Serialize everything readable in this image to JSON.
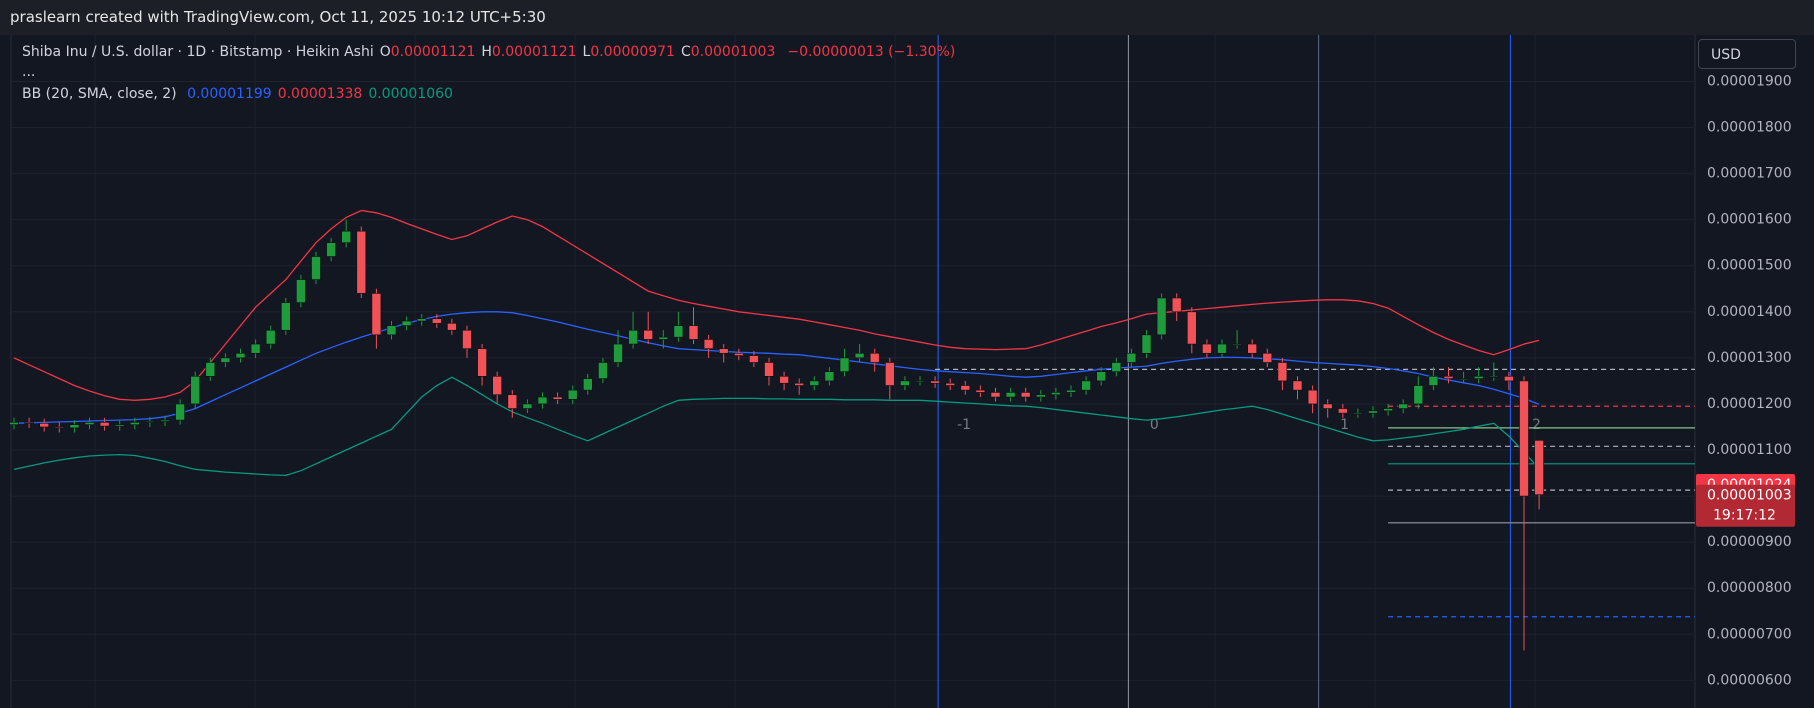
{
  "watermark": "praslearn created with TradingView.com, Oct 11, 2025 10:12 UTC+5:30",
  "chart_data": {
    "type": "candlestick",
    "title": "Shiba Inu / U.S. dollar · 1D · Bitstamp · Heikin Ashi",
    "ohlc": [
      {
        "key": "O",
        "label": "0.00001121"
      },
      {
        "key": "H",
        "label": "0.00001121"
      },
      {
        "key": "L",
        "label": "0.00000971"
      },
      {
        "key": "C",
        "label": "0.00001003"
      }
    ],
    "change": "−0.00000013 (−1.30%)",
    "more": "...",
    "currency": "USD",
    "up_color": "#1e9c3c",
    "down_color": "#f05258",
    "open": [
      1.155e-05,
      1.16e-05,
      1.158e-05,
      1.15e-05,
      1.148e-05,
      1.155e-05,
      1.16e-05,
      1.152e-05,
      1.155e-05,
      1.16e-05,
      1.162e-05,
      1.165e-05,
      1.2e-05,
      1.26e-05,
      1.29e-05,
      1.3e-05,
      1.31e-05,
      1.33e-05,
      1.36e-05,
      1.42e-05,
      1.47e-05,
      1.52e-05,
      1.55e-05,
      1.575e-05,
      1.44e-05,
      1.35e-05,
      1.37e-05,
      1.38e-05,
      1.385e-05,
      1.375e-05,
      1.36e-05,
      1.32e-05,
      1.26e-05,
      1.22e-05,
      1.19e-05,
      1.2e-05,
      1.215e-05,
      1.21e-05,
      1.23e-05,
      1.255e-05,
      1.29e-05,
      1.33e-05,
      1.36e-05,
      1.34e-05,
      1.345e-05,
      1.37e-05,
      1.34e-05,
      1.32e-05,
      1.31e-05,
      1.305e-05,
      1.29e-05,
      1.26e-05,
      1.245e-05,
      1.24e-05,
      1.25e-05,
      1.27e-05,
      1.3e-05,
      1.31e-05,
      1.29e-05,
      1.24e-05,
      1.25e-05,
      1.25e-05,
      1.245e-05,
      1.24e-05,
      1.23e-05,
      1.225e-05,
      1.215e-05,
      1.225e-05,
      1.215e-05,
      1.22e-05,
      1.225e-05,
      1.23e-05,
      1.25e-05,
      1.27e-05,
      1.29e-05,
      1.31e-05,
      1.35e-05,
      1.43e-05,
      1.4e-05,
      1.33e-05,
      1.31e-05,
      1.33e-05,
      1.33e-05,
      1.31e-05,
      1.29e-05,
      1.25e-05,
      1.23e-05,
      1.2e-05,
      1.19e-05,
      1.18e-05,
      1.18e-05,
      1.185e-05,
      1.19e-05,
      1.2e-05,
      1.24e-05,
      1.26e-05,
      1.255e-05,
      1.255e-05,
      1.26e-05,
      1.26e-05,
      1.25e-05,
      1.121e-05
    ],
    "high": [
      1.17e-05,
      1.17e-05,
      1.168e-05,
      1.16e-05,
      1.165e-05,
      1.17e-05,
      1.17e-05,
      1.165e-05,
      1.17e-05,
      1.172e-05,
      1.175e-05,
      1.21e-05,
      1.27e-05,
      1.3e-05,
      1.31e-05,
      1.32e-05,
      1.34e-05,
      1.37e-05,
      1.43e-05,
      1.48e-05,
      1.53e-05,
      1.56e-05,
      1.6e-05,
      1.585e-05,
      1.45e-05,
      1.38e-05,
      1.39e-05,
      1.395e-05,
      1.395e-05,
      1.385e-05,
      1.37e-05,
      1.33e-05,
      1.27e-05,
      1.23e-05,
      1.21e-05,
      1.225e-05,
      1.225e-05,
      1.24e-05,
      1.265e-05,
      1.3e-05,
      1.36e-05,
      1.4e-05,
      1.4e-05,
      1.36e-05,
      1.4e-05,
      1.41e-05,
      1.35e-05,
      1.33e-05,
      1.32e-05,
      1.315e-05,
      1.3e-05,
      1.27e-05,
      1.255e-05,
      1.26e-05,
      1.28e-05,
      1.32e-05,
      1.33e-05,
      1.32e-05,
      1.3e-05,
      1.26e-05,
      1.26e-05,
      1.26e-05,
      1.255e-05,
      1.25e-05,
      1.24e-05,
      1.235e-05,
      1.235e-05,
      1.235e-05,
      1.23e-05,
      1.235e-05,
      1.24e-05,
      1.26e-05,
      1.28e-05,
      1.3e-05,
      1.32e-05,
      1.36e-05,
      1.44e-05,
      1.44e-05,
      1.41e-05,
      1.34e-05,
      1.34e-05,
      1.36e-05,
      1.34e-05,
      1.32e-05,
      1.3e-05,
      1.26e-05,
      1.24e-05,
      1.21e-05,
      1.2e-05,
      1.19e-05,
      1.195e-05,
      1.2e-05,
      1.21e-05,
      1.26e-05,
      1.28e-05,
      1.28e-05,
      1.27e-05,
      1.28e-05,
      1.29e-05,
      1.27e-05,
      1.26e-05,
      1.121e-05
    ],
    "low": [
      1.145e-05,
      1.148e-05,
      1.14e-05,
      1.138e-05,
      1.138e-05,
      1.145e-05,
      1.142e-05,
      1.142e-05,
      1.145e-05,
      1.15e-05,
      1.152e-05,
      1.155e-05,
      1.19e-05,
      1.25e-05,
      1.28e-05,
      1.29e-05,
      1.3e-05,
      1.32e-05,
      1.35e-05,
      1.41e-05,
      1.46e-05,
      1.51e-05,
      1.54e-05,
      1.43e-05,
      1.32e-05,
      1.34e-05,
      1.36e-05,
      1.37e-05,
      1.365e-05,
      1.35e-05,
      1.3e-05,
      1.24e-05,
      1.2e-05,
      1.17e-05,
      1.18e-05,
      1.19e-05,
      1.2e-05,
      1.2e-05,
      1.22e-05,
      1.245e-05,
      1.28e-05,
      1.32e-05,
      1.33e-05,
      1.32e-05,
      1.335e-05,
      1.33e-05,
      1.3e-05,
      1.29e-05,
      1.295e-05,
      1.28e-05,
      1.24e-05,
      1.23e-05,
      1.22e-05,
      1.23e-05,
      1.24e-05,
      1.26e-05,
      1.29e-05,
      1.27e-05,
      1.21e-05,
      1.23e-05,
      1.24e-05,
      1.235e-05,
      1.23e-05,
      1.22e-05,
      1.215e-05,
      1.205e-05,
      1.205e-05,
      1.205e-05,
      1.205e-05,
      1.21e-05,
      1.215e-05,
      1.22e-05,
      1.24e-05,
      1.26e-05,
      1.28e-05,
      1.3e-05,
      1.34e-05,
      1.38e-05,
      1.31e-05,
      1.3e-05,
      1.3e-05,
      1.32e-05,
      1.3e-05,
      1.28e-05,
      1.23e-05,
      1.21e-05,
      1.18e-05,
      1.17e-05,
      1.17e-05,
      1.17e-05,
      1.17e-05,
      1.175e-05,
      1.18e-05,
      1.19e-05,
      1.23e-05,
      1.245e-05,
      1.245e-05,
      1.245e-05,
      1.25e-05,
      1.23e-05,
      6.65e-06,
      9.71e-06
    ],
    "close": [
      1.16e-05,
      1.158e-05,
      1.15e-05,
      1.148e-05,
      1.155e-05,
      1.16e-05,
      1.152e-05,
      1.155e-05,
      1.16e-05,
      1.162e-05,
      1.165e-05,
      1.2e-05,
      1.26e-05,
      1.29e-05,
      1.3e-05,
      1.31e-05,
      1.33e-05,
      1.36e-05,
      1.42e-05,
      1.47e-05,
      1.52e-05,
      1.55e-05,
      1.575e-05,
      1.44e-05,
      1.35e-05,
      1.37e-05,
      1.38e-05,
      1.385e-05,
      1.375e-05,
      1.36e-05,
      1.32e-05,
      1.26e-05,
      1.22e-05,
      1.19e-05,
      1.2e-05,
      1.215e-05,
      1.21e-05,
      1.23e-05,
      1.255e-05,
      1.29e-05,
      1.33e-05,
      1.36e-05,
      1.34e-05,
      1.345e-05,
      1.37e-05,
      1.34e-05,
      1.32e-05,
      1.31e-05,
      1.305e-05,
      1.29e-05,
      1.26e-05,
      1.245e-05,
      1.24e-05,
      1.25e-05,
      1.27e-05,
      1.3e-05,
      1.31e-05,
      1.29e-05,
      1.24e-05,
      1.25e-05,
      1.25e-05,
      1.245e-05,
      1.24e-05,
      1.23e-05,
      1.225e-05,
      1.215e-05,
      1.225e-05,
      1.215e-05,
      1.22e-05,
      1.225e-05,
      1.23e-05,
      1.25e-05,
      1.27e-05,
      1.29e-05,
      1.31e-05,
      1.35e-05,
      1.43e-05,
      1.4e-05,
      1.33e-05,
      1.31e-05,
      1.33e-05,
      1.33e-05,
      1.31e-05,
      1.29e-05,
      1.25e-05,
      1.23e-05,
      1.2e-05,
      1.19e-05,
      1.18e-05,
      1.18e-05,
      1.185e-05,
      1.19e-05,
      1.2e-05,
      1.24e-05,
      1.26e-05,
      1.255e-05,
      1.255e-05,
      1.26e-05,
      1.26e-05,
      1.25e-05,
      1e-05,
      1.003e-05
    ],
    "indicator": {
      "label": "BB (20, SMA, close, 2)",
      "lines": [
        {
          "color": "#2962ff",
          "last_label": "0.00001199",
          "values": [
            1.158e-05,
            1.159e-05,
            1.16e-05,
            1.161e-05,
            1.162e-05,
            1.163e-05,
            1.164e-05,
            1.165e-05,
            1.166e-05,
            1.168e-05,
            1.172e-05,
            1.18e-05,
            1.19e-05,
            1.205e-05,
            1.22e-05,
            1.235e-05,
            1.25e-05,
            1.265e-05,
            1.28e-05,
            1.295e-05,
            1.31e-05,
            1.322e-05,
            1.334e-05,
            1.345e-05,
            1.355e-05,
            1.365e-05,
            1.375e-05,
            1.383e-05,
            1.39e-05,
            1.395e-05,
            1.398e-05,
            1.4e-05,
            1.4e-05,
            1.398e-05,
            1.392e-05,
            1.385e-05,
            1.378e-05,
            1.37e-05,
            1.362e-05,
            1.355e-05,
            1.348e-05,
            1.34e-05,
            1.333e-05,
            1.326e-05,
            1.32e-05,
            1.318e-05,
            1.316e-05,
            1.314e-05,
            1.312e-05,
            1.311e-05,
            1.31e-05,
            1.308e-05,
            1.307e-05,
            1.303e-05,
            1.299e-05,
            1.295e-05,
            1.291e-05,
            1.287e-05,
            1.283e-05,
            1.279e-05,
            1.275e-05,
            1.272e-05,
            1.27e-05,
            1.268e-05,
            1.266e-05,
            1.263e-05,
            1.26e-05,
            1.258e-05,
            1.26e-05,
            1.264e-05,
            1.268e-05,
            1.272e-05,
            1.275e-05,
            1.278e-05,
            1.28e-05,
            1.282e-05,
            1.288e-05,
            1.293e-05,
            1.297e-05,
            1.3e-05,
            1.301e-05,
            1.301e-05,
            1.3e-05,
            1.298e-05,
            1.296e-05,
            1.293e-05,
            1.29e-05,
            1.288e-05,
            1.286e-05,
            1.284e-05,
            1.281e-05,
            1.277e-05,
            1.272e-05,
            1.266e-05,
            1.258e-05,
            1.252e-05,
            1.246e-05,
            1.24e-05,
            1.232e-05,
            1.222e-05,
            1.212e-05,
            1.199e-05
          ]
        },
        {
          "color": "#f23645",
          "last_label": "0.00001338",
          "values": [
            1.3e-05,
            1.285e-05,
            1.27e-05,
            1.255e-05,
            1.24e-05,
            1.228e-05,
            1.218e-05,
            1.21e-05,
            1.208e-05,
            1.21e-05,
            1.215e-05,
            1.225e-05,
            1.25e-05,
            1.29e-05,
            1.33e-05,
            1.37e-05,
            1.41e-05,
            1.44e-05,
            1.47e-05,
            1.51e-05,
            1.55e-05,
            1.58e-05,
            1.605e-05,
            1.62e-05,
            1.615e-05,
            1.605e-05,
            1.592e-05,
            1.58e-05,
            1.568e-05,
            1.557e-05,
            1.565e-05,
            1.58e-05,
            1.595e-05,
            1.608e-05,
            1.6e-05,
            1.585e-05,
            1.565e-05,
            1.545e-05,
            1.525e-05,
            1.505e-05,
            1.485e-05,
            1.465e-05,
            1.445e-05,
            1.435e-05,
            1.425e-05,
            1.418e-05,
            1.412e-05,
            1.406e-05,
            1.4e-05,
            1.396e-05,
            1.392e-05,
            1.388e-05,
            1.384e-05,
            1.378e-05,
            1.372e-05,
            1.366e-05,
            1.36e-05,
            1.352e-05,
            1.346e-05,
            1.34e-05,
            1.334e-05,
            1.328e-05,
            1.323e-05,
            1.32e-05,
            1.319e-05,
            1.318e-05,
            1.319e-05,
            1.32e-05,
            1.328e-05,
            1.338e-05,
            1.348e-05,
            1.358e-05,
            1.368e-05,
            1.376e-05,
            1.385e-05,
            1.395e-05,
            1.398e-05,
            1.401e-05,
            1.404e-05,
            1.407e-05,
            1.41e-05,
            1.413e-05,
            1.416e-05,
            1.419e-05,
            1.421e-05,
            1.423e-05,
            1.425e-05,
            1.426e-05,
            1.426e-05,
            1.424e-05,
            1.418e-05,
            1.408e-05,
            1.39e-05,
            1.372e-05,
            1.355e-05,
            1.34e-05,
            1.328e-05,
            1.316e-05,
            1.307e-05,
            1.318e-05,
            1.33e-05,
            1.338e-05
          ]
        },
        {
          "color": "#089981",
          "last_label": "0.00001060",
          "values": [
            1.058e-05,
            1.065e-05,
            1.072e-05,
            1.078e-05,
            1.083e-05,
            1.087e-05,
            1.089e-05,
            1.09e-05,
            1.088e-05,
            1.082e-05,
            1.075e-05,
            1.066e-05,
            1.058e-05,
            1.055e-05,
            1.052e-05,
            1.05e-05,
            1.048e-05,
            1.046e-05,
            1.045e-05,
            1.055e-05,
            1.07e-05,
            1.085e-05,
            1.1e-05,
            1.115e-05,
            1.13e-05,
            1.145e-05,
            1.18e-05,
            1.215e-05,
            1.24e-05,
            1.258e-05,
            1.24e-05,
            1.22e-05,
            1.2e-05,
            1.183e-05,
            1.17e-05,
            1.158e-05,
            1.145e-05,
            1.132e-05,
            1.12e-05,
            1.135e-05,
            1.15e-05,
            1.165e-05,
            1.18e-05,
            1.195e-05,
            1.208e-05,
            1.21e-05,
            1.211e-05,
            1.212e-05,
            1.212e-05,
            1.212e-05,
            1.211e-05,
            1.211e-05,
            1.21e-05,
            1.21e-05,
            1.21e-05,
            1.209e-05,
            1.209e-05,
            1.209e-05,
            1.208e-05,
            1.208e-05,
            1.208e-05,
            1.206e-05,
            1.204e-05,
            1.202e-05,
            1.2e-05,
            1.198e-05,
            1.196e-05,
            1.195e-05,
            1.192e-05,
            1.188e-05,
            1.184e-05,
            1.18e-05,
            1.176e-05,
            1.172e-05,
            1.168e-05,
            1.165e-05,
            1.168e-05,
            1.172e-05,
            1.177e-05,
            1.182e-05,
            1.187e-05,
            1.191e-05,
            1.195e-05,
            1.188e-05,
            1.178e-05,
            1.168e-05,
            1.158e-05,
            1.148e-05,
            1.138e-05,
            1.128e-05,
            1.12e-05,
            1.122e-05,
            1.126e-05,
            1.13e-05,
            1.135e-05,
            1.14e-05,
            1.145e-05,
            1.152e-05,
            1.158e-05,
            1.13e-05,
            1.095e-05,
            1.06e-05
          ]
        }
      ]
    },
    "levels": [
      {
        "value": 1.275e-05,
        "color": "#b2b5be",
        "dashed": true
      },
      {
        "value": 1.195e-05,
        "color": "#f23645",
        "dashed": true
      },
      {
        "value": 1.148e-05,
        "color": "#81c784",
        "dashed": false
      },
      {
        "value": 1.108e-05,
        "color": "#b2b5be",
        "dashed": true
      },
      {
        "value": 1.07e-05,
        "color": "#089981",
        "dashed": false
      },
      {
        "value": 1.013e-05,
        "color": "#b2b5be",
        "dashed": true
      },
      {
        "value": 9.42e-06,
        "color": "#9598a1",
        "dashed": false
      },
      {
        "value": 7.38e-06,
        "color": "#2962ff",
        "dashed": true
      }
    ],
    "cycle_labels": [
      "-1",
      "0",
      "1",
      "2"
    ],
    "price_labels": [
      {
        "value": 1.024e-05,
        "label": "0.00001024",
        "color": "#f23645"
      },
      {
        "value": 1.003e-05,
        "label": "0.00001003",
        "color": "#b22833"
      }
    ],
    "countdown": "19:17:12",
    "ylim": [
      5.4e-06,
      1.99e-05
    ],
    "yticks": [
      {
        "value": 6e-06,
        "label": "0.00000600"
      },
      {
        "value": 7e-06,
        "label": "0.00000700"
      },
      {
        "value": 8e-06,
        "label": "0.00000800"
      },
      {
        "value": 9e-06,
        "label": "0.00000900"
      },
      {
        "value": 1e-05,
        "label": "0.00001000"
      },
      {
        "value": 1.1e-05,
        "label": "0.00001100"
      },
      {
        "value": 1.2e-05,
        "label": "0.00001200"
      },
      {
        "value": 1.3e-05,
        "label": "0.00001300"
      },
      {
        "value": 1.4e-05,
        "label": "0.00001400"
      },
      {
        "value": 1.5e-05,
        "label": "0.00001500"
      },
      {
        "value": 1.6e-05,
        "label": "0.00001600"
      },
      {
        "value": 1.7e-05,
        "label": "0.00001700"
      },
      {
        "value": 1.8e-05,
        "label": "0.00001800"
      },
      {
        "value": 1.9e-05,
        "label": "0.00001900"
      }
    ],
    "grid": true
  }
}
